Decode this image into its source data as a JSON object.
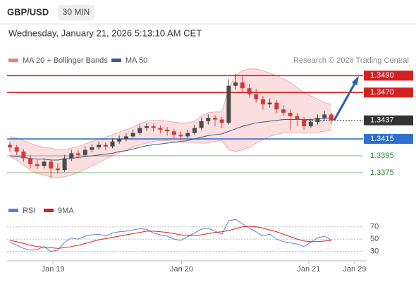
{
  "chart_data": {
    "type": "candlestick",
    "symbol": "GBP/USD",
    "timeframe": "30 MIN",
    "date": "Wednesday, January 21, 2026 5:13:10 AM CET",
    "source": "Research © 2026 Trading Central",
    "indicators": [
      {
        "name": "MA 20 + Bollinger Bands",
        "color": "#f08080"
      },
      {
        "name": "MA 50",
        "color": "#3b5b8c"
      }
    ],
    "up_color": "#4a4a4a",
    "down_color": "#d33a3a",
    "ylim": [
      1.3344,
      1.3517
    ],
    "candles": [
      [
        1.3408,
        1.3412,
        1.34,
        1.3405
      ],
      [
        1.3405,
        1.3408,
        1.3396,
        1.34
      ],
      [
        1.34,
        1.3403,
        1.3388,
        1.3392
      ],
      [
        1.3392,
        1.3396,
        1.338,
        1.3385
      ],
      [
        1.3385,
        1.339,
        1.3379,
        1.3383
      ],
      [
        1.3383,
        1.3392,
        1.338,
        1.3388
      ],
      [
        1.3388,
        1.3391,
        1.3368,
        1.338
      ],
      [
        1.338,
        1.3386,
        1.3374,
        1.3378
      ],
      [
        1.3378,
        1.3396,
        1.3376,
        1.3392
      ],
      [
        1.3392,
        1.3402,
        1.3389,
        1.3398
      ],
      [
        1.3398,
        1.3401,
        1.3392,
        1.3396
      ],
      [
        1.3396,
        1.3406,
        1.3394,
        1.3402
      ],
      [
        1.3402,
        1.3409,
        1.3399,
        1.3405
      ],
      [
        1.3405,
        1.3412,
        1.3402,
        1.3408
      ],
      [
        1.3408,
        1.3411,
        1.3402,
        1.3406
      ],
      [
        1.3406,
        1.3416,
        1.3404,
        1.3412
      ],
      [
        1.3412,
        1.3419,
        1.3409,
        1.3415
      ],
      [
        1.3415,
        1.3422,
        1.3412,
        1.3418
      ],
      [
        1.3418,
        1.3426,
        1.3415,
        1.3422
      ],
      [
        1.3422,
        1.3432,
        1.342,
        1.3428
      ],
      [
        1.3428,
        1.3434,
        1.3424,
        1.343
      ],
      [
        1.343,
        1.3433,
        1.3424,
        1.3428
      ],
      [
        1.3428,
        1.3431,
        1.3422,
        1.3426
      ],
      [
        1.3426,
        1.3429,
        1.3419,
        1.3424
      ],
      [
        1.3424,
        1.3427,
        1.3414,
        1.342
      ],
      [
        1.342,
        1.3424,
        1.3413,
        1.3418
      ],
      [
        1.3418,
        1.3426,
        1.3416,
        1.3422
      ],
      [
        1.3422,
        1.3432,
        1.342,
        1.3428
      ],
      [
        1.3428,
        1.344,
        1.3425,
        1.3436
      ],
      [
        1.3436,
        1.3444,
        1.3432,
        1.344
      ],
      [
        1.344,
        1.3443,
        1.343,
        1.3438
      ],
      [
        1.3438,
        1.3441,
        1.3428,
        1.3434
      ],
      [
        1.3434,
        1.3486,
        1.3432,
        1.3478
      ],
      [
        1.3478,
        1.3492,
        1.3474,
        1.3482
      ],
      [
        1.3482,
        1.3491,
        1.347,
        1.3475
      ],
      [
        1.3475,
        1.348,
        1.3464,
        1.3468
      ],
      [
        1.3468,
        1.3474,
        1.3458,
        1.3462
      ],
      [
        1.3462,
        1.3466,
        1.345,
        1.3456
      ],
      [
        1.3456,
        1.3463,
        1.3452,
        1.3458
      ],
      [
        1.3458,
        1.3461,
        1.3446,
        1.345
      ],
      [
        1.345,
        1.3455,
        1.3442,
        1.3446
      ],
      [
        1.3446,
        1.345,
        1.3426,
        1.3442
      ],
      [
        1.3442,
        1.3446,
        1.343,
        1.3438
      ],
      [
        1.3438,
        1.3441,
        1.3426,
        1.343
      ],
      [
        1.343,
        1.3439,
        1.3428,
        1.3435
      ],
      [
        1.3435,
        1.3444,
        1.3432,
        1.344
      ],
      [
        1.344,
        1.3448,
        1.3436,
        1.3444
      ],
      [
        1.3444,
        1.3446,
        1.3432,
        1.3437
      ]
    ],
    "ma50": [
      1.3395,
      1.3394,
      1.3393,
      1.3392,
      1.3391,
      1.3391,
      1.339,
      1.339,
      1.3391,
      1.3392,
      1.3393,
      1.3394,
      1.3395,
      1.3396,
      1.3397,
      1.3398,
      1.34,
      1.3401,
      1.3403,
      1.3405,
      1.3407,
      1.3408,
      1.3409,
      1.341,
      1.3411,
      1.3412,
      1.3413,
      1.3415,
      1.3417,
      1.3419,
      1.342,
      1.3421,
      1.3424,
      1.3427,
      1.343,
      1.3432,
      1.3434,
      1.3435,
      1.3436,
      1.3437,
      1.3438,
      1.3438,
      1.3438,
      1.3438,
      1.3438,
      1.3439,
      1.3439,
      1.344
    ],
    "bb_upper": [
      1.3418,
      1.3416,
      1.3413,
      1.341,
      1.3407,
      1.3405,
      1.3404,
      1.3402,
      1.3402,
      1.3404,
      1.3406,
      1.3409,
      1.3412,
      1.3415,
      1.3417,
      1.342,
      1.3423,
      1.3426,
      1.3429,
      1.3433,
      1.3436,
      1.3437,
      1.3437,
      1.3436,
      1.3435,
      1.3434,
      1.3434,
      1.3436,
      1.3442,
      1.3446,
      1.3447,
      1.3447,
      1.3475,
      1.349,
      1.3496,
      1.3498,
      1.3498,
      1.3496,
      1.3493,
      1.349,
      1.3486,
      1.3482,
      1.3476,
      1.347,
      1.3466,
      1.3462,
      1.3458,
      1.3456
    ],
    "bb_lower": [
      1.3394,
      1.339,
      1.3384,
      1.3378,
      1.3374,
      1.3372,
      1.337,
      1.3369,
      1.337,
      1.3372,
      1.3375,
      1.3379,
      1.3383,
      1.3387,
      1.3391,
      1.3395,
      1.3399,
      1.3402,
      1.3405,
      1.3408,
      1.341,
      1.3412,
      1.3413,
      1.3413,
      1.3412,
      1.3411,
      1.3411,
      1.3411,
      1.341,
      1.341,
      1.3412,
      1.3413,
      1.3402,
      1.34,
      1.3402,
      1.3405,
      1.341,
      1.3414,
      1.3418,
      1.342,
      1.3422,
      1.3423,
      1.3423,
      1.3422,
      1.3422,
      1.3423,
      1.3424,
      1.3425
    ],
    "levels": [
      {
        "value": 1.349,
        "label": "1.3490",
        "color": "#d32020",
        "box": true
      },
      {
        "value": 1.347,
        "label": "1.3470",
        "color": "#d32020",
        "box": true
      },
      {
        "value": 1.3437,
        "color": "#333333",
        "box": true,
        "dotted": true
      },
      {
        "value": 1.3415,
        "color": "#2f6fd0",
        "box": true
      },
      {
        "value": 1.3395,
        "color": "#2e8b2e",
        "box": false
      },
      {
        "value": 1.3375,
        "color": "#2e8b2e",
        "box": false
      }
    ],
    "xticks": [
      {
        "value": 6.3,
        "label": "Jan 19"
      },
      {
        "value": 25.1,
        "label": "Jan 20"
      },
      {
        "value": 43.7,
        "label": "Jan 21"
      },
      {
        "value": 50.4,
        "label": "Jan 29"
      }
    ],
    "rsi": {
      "ylim": [
        17,
        95
      ],
      "yticks": [
        70,
        50,
        30
      ],
      "series": [
        {
          "name": "RSI",
          "color": "#5b7fd6",
          "values": [
            45,
            40,
            35,
            32,
            33,
            38,
            30,
            32,
            45,
            52,
            50,
            55,
            57,
            58,
            55,
            60,
            62,
            63,
            65,
            67,
            66,
            60,
            57,
            55,
            50,
            48,
            54,
            60,
            66,
            68,
            63,
            58,
            80,
            82,
            75,
            68,
            62,
            55,
            58,
            50,
            46,
            44,
            42,
            38,
            45,
            52,
            55,
            48
          ]
        },
        {
          "name": "9MA",
          "color": "#d32020",
          "values": [
            48,
            46,
            43,
            40,
            38,
            37,
            36,
            35,
            36,
            38,
            40,
            43,
            46,
            49,
            51,
            53,
            55,
            57,
            59,
            61,
            63,
            63,
            62,
            61,
            59,
            57,
            56,
            56,
            57,
            59,
            61,
            62,
            64,
            67,
            70,
            71,
            70,
            68,
            65,
            62,
            58,
            54,
            50,
            47,
            46,
            46,
            47,
            48
          ]
        }
      ]
    }
  }
}
